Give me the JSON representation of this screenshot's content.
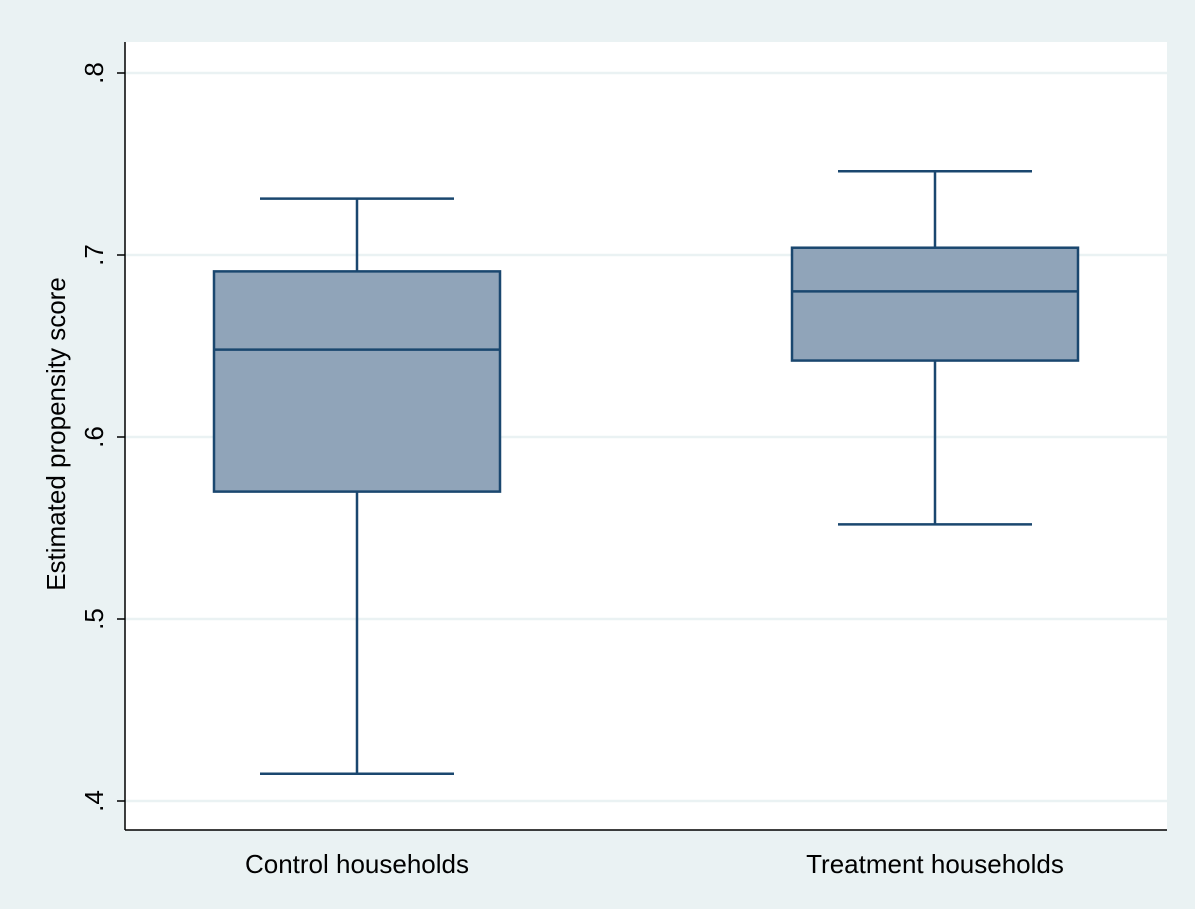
{
  "chart_data": {
    "type": "box",
    "ylabel": "Estimated propensity score",
    "xlabel": "",
    "ylim": [
      0.4,
      0.8
    ],
    "yticks": [
      0.4,
      0.5,
      0.6,
      0.7,
      0.8
    ],
    "ytick_labels": [
      ".4",
      ".5",
      ".6",
      ".7",
      ".8"
    ],
    "grid": true,
    "categories": [
      "Control households",
      "Treatment households"
    ],
    "boxes": [
      {
        "category": "Control households",
        "whisker_low": 0.415,
        "q1": 0.57,
        "median": 0.648,
        "q3": 0.691,
        "whisker_high": 0.731
      },
      {
        "category": "Treatment households",
        "whisker_low": 0.552,
        "q1": 0.642,
        "median": 0.68,
        "q3": 0.704,
        "whisker_high": 0.746
      }
    ],
    "colors": {
      "outer_background": "#eaf2f3",
      "plot_background": "#ffffff",
      "grid": "#eaf2f3",
      "box_fill": "#90a4b9",
      "box_line": "#1a476f",
      "axis": "#000000"
    }
  }
}
